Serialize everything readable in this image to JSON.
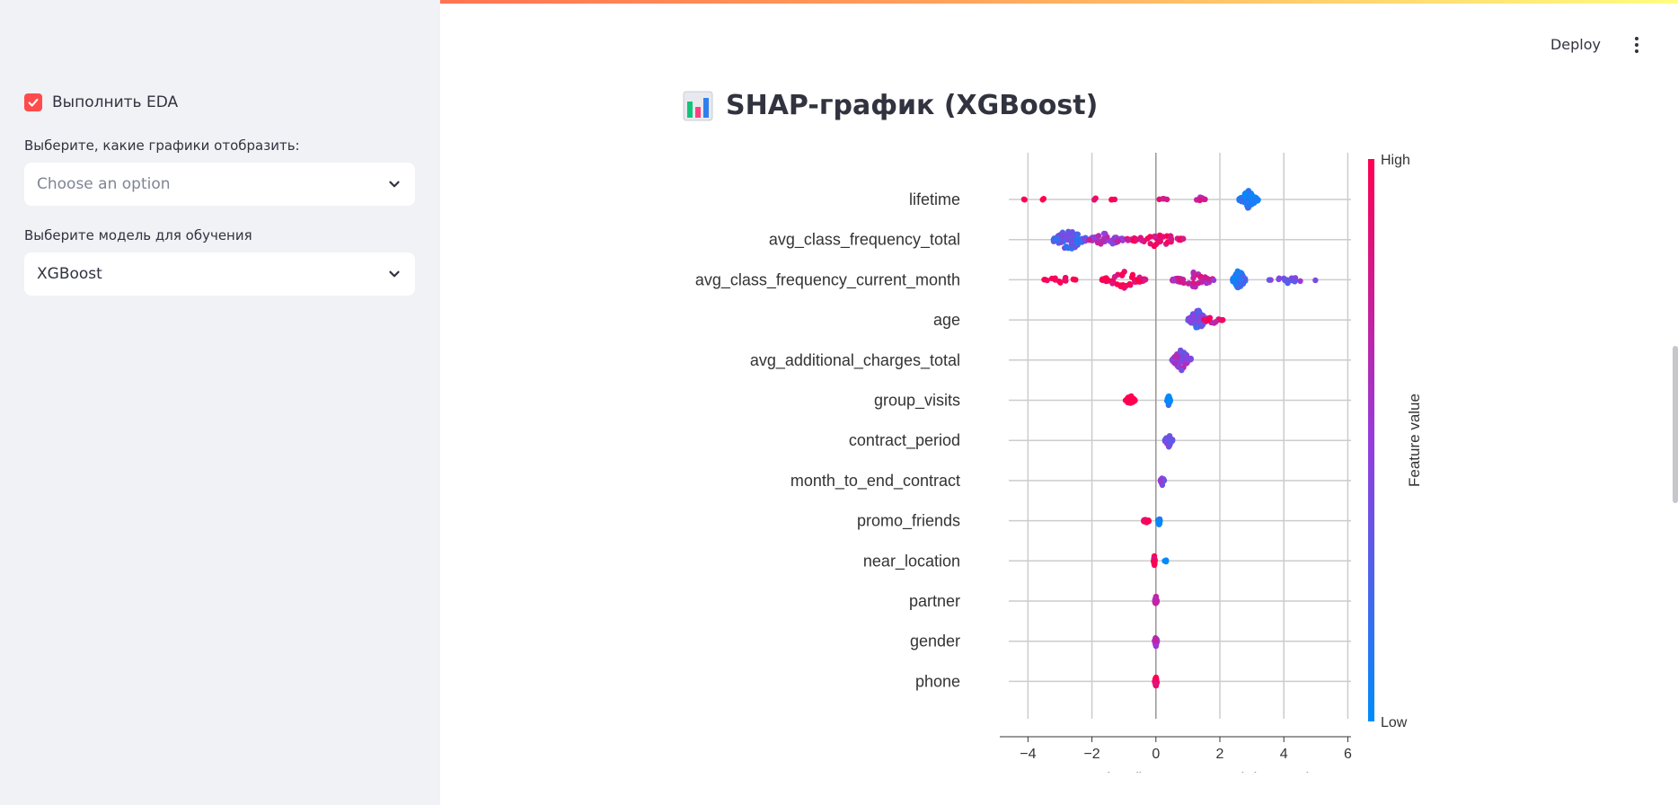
{
  "sidebar": {
    "eda_checkbox": {
      "label": "Выполнить EDA",
      "checked": true
    },
    "plots_select": {
      "label": "Выберите, какие графики отобразить:",
      "placeholder": "Choose an option"
    },
    "model_select": {
      "label": "Выберите модель для обучения",
      "value": "XGBoost"
    }
  },
  "header": {
    "deploy_label": "Deploy",
    "menu_icon": "kebab-menu-icon"
  },
  "main": {
    "title": "SHAP-график (XGBoost)",
    "title_icon": "bar-chart-icon"
  },
  "colors": {
    "accent": "#ff4b4b",
    "high": "#ff0051",
    "low": "#008bfb"
  },
  "chart_data": {
    "type": "scatter",
    "subtype": "shap-beeswarm",
    "xlabel": "SHAP value (impact on model output)",
    "xlim": [
      -4.6,
      6.1
    ],
    "xticks": [
      -4,
      -2,
      0,
      2,
      4,
      6
    ],
    "xtick_labels": [
      "−4",
      "−2",
      "0",
      "2",
      "4",
      "6"
    ],
    "grid": true,
    "colorbar": {
      "label": "Feature value",
      "high_label": "High",
      "low_label": "Low"
    },
    "features": [
      {
        "name": "lifetime",
        "clusters": [
          {
            "x": -4.1,
            "n": 2,
            "spread": 0.05,
            "h": 1
          },
          {
            "x": -3.5,
            "n": 2,
            "spread": 0.05,
            "h": 1
          },
          {
            "x": -1.9,
            "n": 2,
            "spread": 0.05,
            "h": 1
          },
          {
            "x": -1.3,
            "n": 3,
            "spread": 0.1,
            "h": 1
          },
          {
            "x": 0.2,
            "n": 4,
            "spread": 0.15,
            "h": 0.9
          },
          {
            "x": 1.4,
            "n": 8,
            "spread": 0.15,
            "h": 0.8
          },
          {
            "x": 2.9,
            "n": 60,
            "spread": 0.3,
            "h": 0.1
          }
        ]
      },
      {
        "name": "avg_class_frequency_total",
        "clusters": [
          {
            "x": -2.7,
            "n": 80,
            "spread": 0.5,
            "h": 0.3
          },
          {
            "x": -1.6,
            "n": 40,
            "spread": 0.6,
            "h": 0.6
          },
          {
            "x": 0.0,
            "n": 45,
            "spread": 0.9,
            "h": 0.9
          }
        ]
      },
      {
        "name": "avg_class_frequency_current_month",
        "clusters": [
          {
            "x": -3.0,
            "n": 14,
            "spread": 0.5,
            "h": 1
          },
          {
            "x": -1.0,
            "n": 50,
            "spread": 0.7,
            "h": 0.95
          },
          {
            "x": 1.2,
            "n": 45,
            "spread": 0.7,
            "h": 0.7
          },
          {
            "x": 2.6,
            "n": 70,
            "spread": 0.2,
            "h": 0.15
          },
          {
            "x": 4.2,
            "n": 15,
            "spread": 0.8,
            "h": 0.4
          }
        ]
      },
      {
        "name": "age",
        "clusters": [
          {
            "x": 1.3,
            "n": 70,
            "spread": 0.3,
            "h": 0.35
          },
          {
            "x": 1.8,
            "n": 15,
            "spread": 0.3,
            "h": 0.85
          }
        ]
      },
      {
        "name": "avg_additional_charges_total",
        "clusters": [
          {
            "x": 0.8,
            "n": 70,
            "spread": 0.3,
            "h": 0.5
          }
        ]
      },
      {
        "name": "group_visits",
        "clusters": [
          {
            "x": -0.8,
            "n": 25,
            "spread": 0.15,
            "h": 1
          },
          {
            "x": 0.4,
            "n": 30,
            "spread": 0.05,
            "h": 0
          }
        ]
      },
      {
        "name": "contract_period",
        "clusters": [
          {
            "x": 0.4,
            "n": 35,
            "spread": 0.12,
            "h": 0.4
          }
        ]
      },
      {
        "name": "month_to_end_contract",
        "clusters": [
          {
            "x": 0.2,
            "n": 25,
            "spread": 0.06,
            "h": 0.4
          }
        ]
      },
      {
        "name": "promo_friends",
        "clusters": [
          {
            "x": -0.3,
            "n": 18,
            "spread": 0.08,
            "h": 1
          },
          {
            "x": 0.1,
            "n": 25,
            "spread": 0.03,
            "h": 0
          }
        ]
      },
      {
        "name": "near_location",
        "clusters": [
          {
            "x": -0.05,
            "n": 30,
            "spread": 0.02,
            "h": 1
          },
          {
            "x": 0.3,
            "n": 3,
            "spread": 0.03,
            "h": 0
          }
        ]
      },
      {
        "name": "partner",
        "clusters": [
          {
            "x": 0.0,
            "n": 30,
            "spread": 0.03,
            "h": 0.7
          }
        ]
      },
      {
        "name": "gender",
        "clusters": [
          {
            "x": 0.0,
            "n": 25,
            "spread": 0.04,
            "h": 0.6
          }
        ]
      },
      {
        "name": "phone",
        "clusters": [
          {
            "x": 0.0,
            "n": 25,
            "spread": 0.04,
            "h": 0.9
          }
        ]
      }
    ]
  }
}
